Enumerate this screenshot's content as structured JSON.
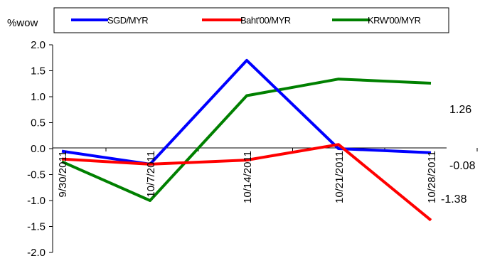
{
  "chart_data": {
    "type": "line",
    "ylabel": "%wow",
    "ylim": [
      -2.0,
      2.0
    ],
    "y_ticks": [
      "2.0",
      "1.5",
      "1.0",
      "0.5",
      "0.0",
      "-0.5",
      "-1.0",
      "-1.5",
      "-2.0"
    ],
    "categories": [
      "9/30/2011",
      "10/7/2011",
      "10/14/2011",
      "10/21/2011",
      "10/28/2011"
    ],
    "series": [
      {
        "name": "SGD/MYR",
        "color": "#0000ff",
        "values": [
          -0.05,
          -0.3,
          1.7,
          0.0,
          -0.08
        ]
      },
      {
        "name": "Baht'00/MYR",
        "color": "#ff0000",
        "values": [
          -0.2,
          -0.3,
          -0.22,
          0.08,
          -1.38
        ]
      },
      {
        "name": "KRW'00/MYR",
        "color": "#008000",
        "values": [
          -0.25,
          -1.0,
          1.02,
          1.34,
          1.26
        ]
      }
    ],
    "end_labels": [
      "1.26",
      "-0.08",
      "-1.38"
    ],
    "legend_position": "top",
    "grid": false
  }
}
